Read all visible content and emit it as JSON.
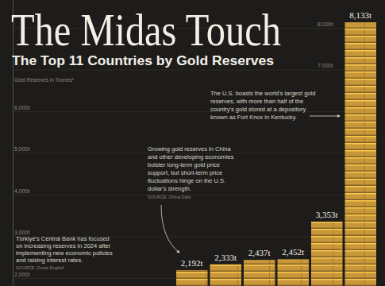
{
  "chart_data": {
    "type": "bar",
    "title": "The Midas Touch",
    "subtitle": "The Top 11 Countries by Gold Reserves",
    "y_label": "Gold Reserves in Tonnes*",
    "categories": [
      null,
      null,
      null,
      null,
      null,
      null
    ],
    "values": [
      2192,
      2333,
      2437,
      2452,
      3353,
      8133
    ],
    "value_labels": [
      "2,192t",
      "2,333t",
      "2,437t",
      "2,452t",
      "3,353t",
      "8,133t"
    ],
    "color": "#c8973a",
    "data_labels": true,
    "grid": true,
    "ylim": [
      1810,
      8670
    ],
    "yticks": [
      {
        "value": 2000,
        "label": "2,000t"
      },
      {
        "value": 3000,
        "label": "3,000t"
      },
      {
        "value": 4000,
        "label": "4,000t"
      },
      {
        "value": 5000,
        "label": "5,000t"
      },
      {
        "value": 6000,
        "label": "6,000t"
      },
      {
        "value": 7000,
        "label": "7,000t"
      },
      {
        "value": 8000,
        "label": "8,000t"
      }
    ],
    "annotations": [
      {
        "text": [
          "Türkiye's Central Bank has focused",
          "on increasing reserves in 2024 after",
          "implementing new economic policies",
          "and raising interest rates."
        ],
        "source": "SOURCE: Duvar English"
      },
      {
        "text": [
          "Growing gold reserves in China",
          "and other developing economies",
          "bolster long-term gold price",
          "support, but short-term price",
          "fluctuations hinge on the U.S.",
          "dollar's strength."
        ],
        "source": "SOURCE: China Daily"
      },
      {
        "text": [
          "The U.S. boasts the world's largest gold",
          "reserves, with more than half of the",
          "country's gold stored at a depository",
          "known as Fort Knox in Kentucky."
        ]
      }
    ]
  }
}
